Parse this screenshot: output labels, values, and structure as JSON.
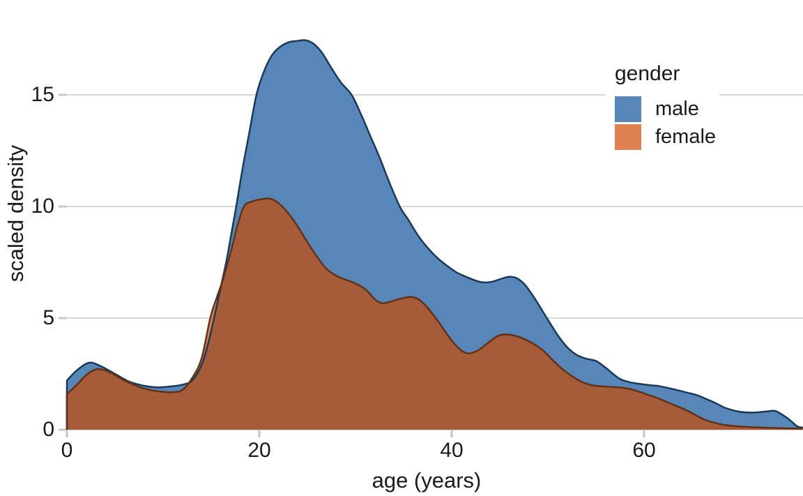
{
  "figure": {
    "xlabel": "age (years)",
    "ylabel": "scaled density",
    "x_ticks": [
      "0",
      "20",
      "40",
      "60"
    ],
    "y_ticks": [
      "0",
      "5",
      "10",
      "15"
    ]
  },
  "legend": {
    "title": "gender",
    "items": [
      {
        "label": "male",
        "color": "#5787b8"
      },
      {
        "label": "female",
        "color": "#dd8250"
      }
    ]
  },
  "colors": {
    "male_fill": "#5787b8",
    "male_stroke": "#17395a",
    "female_fill": "#dd8250",
    "female_stroke": "#643113",
    "overlap_fill": "#a65c38",
    "gridline": "#d9d9d9",
    "tick": "#c2c6c9",
    "text": "#1a1a1a",
    "background": "#ffffff"
  },
  "chart_data": {
    "type": "area",
    "subtype": "overlapping-density",
    "title": "",
    "xlabel": "age (years)",
    "ylabel": "scaled density",
    "xlim": [
      0,
      76.5
    ],
    "ylim": [
      0,
      19.3
    ],
    "x_ticks": [
      0,
      20,
      40,
      60
    ],
    "y_ticks": [
      0,
      5,
      10,
      15
    ],
    "grid": "horizontal",
    "legend_position": "upper-right",
    "legend_title": "gender",
    "series": [
      {
        "name": "male",
        "points": [
          [
            0,
            2.2
          ],
          [
            1,
            2.65
          ],
          [
            2.3,
            3.0
          ],
          [
            3.5,
            2.85
          ],
          [
            5,
            2.5
          ],
          [
            6.5,
            2.15
          ],
          [
            8,
            1.97
          ],
          [
            9.5,
            1.9
          ],
          [
            11,
            1.95
          ],
          [
            12,
            2.02
          ],
          [
            13,
            2.2
          ],
          [
            14,
            2.9
          ],
          [
            14.7,
            3.9
          ],
          [
            15.3,
            5.0
          ],
          [
            16,
            6.4
          ],
          [
            16.6,
            7.6
          ],
          [
            17.1,
            8.8
          ],
          [
            17.6,
            10.0
          ],
          [
            18.3,
            11.8
          ],
          [
            19,
            13.4
          ],
          [
            19.7,
            15.0
          ],
          [
            20.4,
            15.95
          ],
          [
            21.2,
            16.7
          ],
          [
            22,
            17.1
          ],
          [
            23,
            17.35
          ],
          [
            24,
            17.42
          ],
          [
            24.8,
            17.45
          ],
          [
            25.6,
            17.3
          ],
          [
            26.5,
            16.9
          ],
          [
            27.5,
            16.2
          ],
          [
            28.5,
            15.55
          ],
          [
            29.6,
            15.0
          ],
          [
            30.5,
            14.2
          ],
          [
            31.5,
            13.2
          ],
          [
            32.5,
            12.2
          ],
          [
            33.5,
            11.1
          ],
          [
            34.6,
            10.0
          ],
          [
            35.5,
            9.4
          ],
          [
            36.5,
            8.7
          ],
          [
            37.5,
            8.15
          ],
          [
            38.5,
            7.7
          ],
          [
            39.5,
            7.35
          ],
          [
            40.5,
            7.05
          ],
          [
            41.5,
            6.85
          ],
          [
            42.5,
            6.68
          ],
          [
            43.3,
            6.6
          ],
          [
            44.2,
            6.63
          ],
          [
            45.2,
            6.77
          ],
          [
            46,
            6.85
          ],
          [
            46.8,
            6.78
          ],
          [
            47.6,
            6.5
          ],
          [
            48.6,
            5.9
          ],
          [
            49.9,
            5.0
          ],
          [
            51,
            4.25
          ],
          [
            52,
            3.7
          ],
          [
            53,
            3.35
          ],
          [
            54,
            3.18
          ],
          [
            55,
            3.08
          ],
          [
            56,
            2.78
          ],
          [
            57.4,
            2.3
          ],
          [
            58.5,
            2.13
          ],
          [
            59.6,
            2.05
          ],
          [
            60.5,
            2.0
          ],
          [
            61.5,
            1.96
          ],
          [
            62.5,
            1.87
          ],
          [
            63.5,
            1.77
          ],
          [
            64.5,
            1.66
          ],
          [
            65.5,
            1.55
          ],
          [
            66.5,
            1.37
          ],
          [
            67.5,
            1.18
          ],
          [
            68.5,
            0.97
          ],
          [
            69.9,
            0.81
          ],
          [
            71.3,
            0.77
          ],
          [
            72.8,
            0.82
          ],
          [
            73.7,
            0.83
          ],
          [
            74.9,
            0.52
          ],
          [
            75.9,
            0.16
          ],
          [
            76.5,
            0.1
          ]
        ]
      },
      {
        "name": "female",
        "points": [
          [
            0,
            1.6
          ],
          [
            1,
            2.0
          ],
          [
            2,
            2.45
          ],
          [
            3,
            2.7
          ],
          [
            3.8,
            2.68
          ],
          [
            5,
            2.45
          ],
          [
            6,
            2.2
          ],
          [
            7,
            2.0
          ],
          [
            8,
            1.85
          ],
          [
            9,
            1.75
          ],
          [
            10,
            1.7
          ],
          [
            11,
            1.68
          ],
          [
            12,
            1.78
          ],
          [
            13,
            2.3
          ],
          [
            14,
            3.2
          ],
          [
            14.9,
            5.0
          ],
          [
            15.6,
            5.95
          ],
          [
            16.2,
            6.7
          ],
          [
            17,
            7.9
          ],
          [
            17.7,
            9.1
          ],
          [
            18.4,
            10.0
          ],
          [
            19.2,
            10.22
          ],
          [
            20.1,
            10.32
          ],
          [
            21.1,
            10.35
          ],
          [
            22,
            10.15
          ],
          [
            23,
            9.7
          ],
          [
            24,
            9.1
          ],
          [
            25,
            8.4
          ],
          [
            26,
            7.75
          ],
          [
            27,
            7.2
          ],
          [
            28,
            6.9
          ],
          [
            29,
            6.72
          ],
          [
            30,
            6.55
          ],
          [
            31,
            6.3
          ],
          [
            32,
            5.85
          ],
          [
            32.7,
            5.67
          ],
          [
            33.5,
            5.72
          ],
          [
            34.5,
            5.85
          ],
          [
            35.6,
            5.95
          ],
          [
            36.4,
            5.88
          ],
          [
            37.2,
            5.6
          ],
          [
            38,
            5.2
          ],
          [
            39,
            4.6
          ],
          [
            40,
            4.0
          ],
          [
            41,
            3.55
          ],
          [
            41.8,
            3.42
          ],
          [
            42.8,
            3.57
          ],
          [
            43.8,
            3.9
          ],
          [
            44.8,
            4.2
          ],
          [
            45.6,
            4.27
          ],
          [
            46.5,
            4.22
          ],
          [
            47.5,
            4.07
          ],
          [
            48.5,
            3.85
          ],
          [
            49.5,
            3.55
          ],
          [
            50.5,
            3.12
          ],
          [
            51.5,
            2.72
          ],
          [
            52.5,
            2.4
          ],
          [
            53.5,
            2.15
          ],
          [
            54.5,
            2.0
          ],
          [
            55.5,
            1.95
          ],
          [
            56.5,
            1.92
          ],
          [
            57.5,
            1.89
          ],
          [
            58.5,
            1.83
          ],
          [
            59.5,
            1.7
          ],
          [
            60.5,
            1.55
          ],
          [
            61.5,
            1.4
          ],
          [
            62.5,
            1.22
          ],
          [
            63.5,
            1.04
          ],
          [
            64.5,
            0.85
          ],
          [
            65.5,
            0.62
          ],
          [
            66.3,
            0.45
          ],
          [
            67,
            0.35
          ],
          [
            68,
            0.24
          ],
          [
            69,
            0.18
          ],
          [
            70.5,
            0.13
          ],
          [
            72,
            0.1
          ],
          [
            74,
            0.07
          ],
          [
            76.5,
            0.05
          ]
        ]
      }
    ]
  }
}
